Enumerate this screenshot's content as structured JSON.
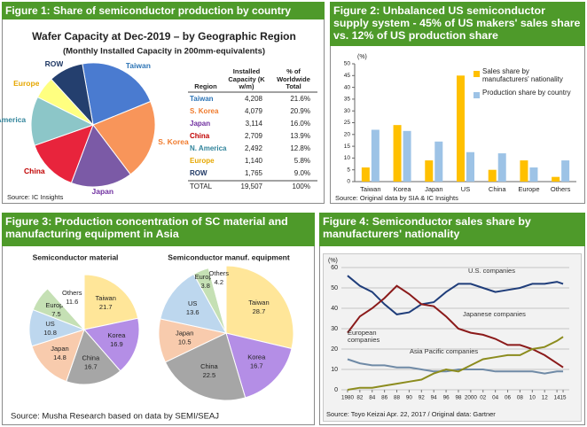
{
  "panels": [
    {
      "header": "Figure 1: Share of semiconductor production by country",
      "source": "Source: IC Insights"
    },
    {
      "header": "Figure 2: Unbalanced US semiconductor supply system - 45% of US makers' sales share vs. 12% of US production share",
      "source": "Source: Original data by SIA & IC Insights"
    },
    {
      "header": "Figure 3: Production concentration of SC material and manufacturing equipment in Asia",
      "source": "Source: Musha Research based on data by SEMI/SEAJ"
    },
    {
      "header": "Figure 4: Semiconductor sales share by manufacturers' nationality",
      "source": "Source: Toyo Keizai Apr. 22, 2017 / Original data: Gartner"
    }
  ],
  "chart_data": [
    {
      "type": "pie",
      "title": "Wafer Capacity at Dec-2019 – by Geographic Region",
      "subtitle": "(Monthly Installed Capacity in 200mm-equivalents)",
      "categories": [
        "Taiwan",
        "S. Korea",
        "Japan",
        "China",
        "N. America",
        "Europe",
        "ROW"
      ],
      "values": [
        21.6,
        20.9,
        16.0,
        13.9,
        12.8,
        5.8,
        9.0
      ],
      "value_labels": [
        "21.6%",
        "20.9%",
        "16.0%",
        "13.9%",
        "12.8%",
        "5.8%",
        "9.0%"
      ],
      "colors": [
        "#4a7bd0",
        "#f8955a",
        "#7b5aa6",
        "#e8243c",
        "#8cc6c8",
        "#ffff80",
        "#243f6e"
      ],
      "label_colors": [
        "#2e75b6",
        "#f07b2d",
        "#7030a0",
        "#c00000",
        "#31849b",
        "#e6a700",
        "#1f3864"
      ],
      "label_position": "outside",
      "table": {
        "columns": [
          "Region",
          "Installed Capacity (K w/m)",
          "% of Worldwide Total"
        ],
        "capacity": [
          "4,208",
          "4,079",
          "3,114",
          "2,709",
          "2,492",
          "1,140",
          "1,765"
        ],
        "total": [
          "TOTAL",
          "19,507",
          "100%"
        ]
      }
    },
    {
      "type": "bar",
      "unit": "(%)",
      "categories": [
        "Taiwan",
        "Korea",
        "Japan",
        "US",
        "China",
        "Europe",
        "Others"
      ],
      "series": [
        {
          "name": "Sales share by manufacturers' nationality",
          "color": "#ffc000",
          "values": [
            6,
            24,
            9,
            45,
            5,
            9,
            2
          ]
        },
        {
          "name": "Production share by country",
          "color": "#9dc3e6",
          "values": [
            22,
            21.5,
            17,
            12.5,
            12,
            6,
            9
          ]
        }
      ],
      "ylim": [
        0,
        50
      ],
      "yticks": [
        0,
        5,
        10,
        15,
        20,
        25,
        30,
        35,
        40,
        45,
        50
      ],
      "legend": "upper right"
    },
    {
      "type": "pie",
      "title": "Semiconductor material",
      "categories": [
        "Taiwan",
        "Korea",
        "China",
        "Japan",
        "US",
        "Europe",
        "Others"
      ],
      "values": [
        21.7,
        16.9,
        16.7,
        14.8,
        10.8,
        7.5,
        11.6
      ],
      "colors": [
        "#ffe699",
        "#b48ee6",
        "#a6a6a6",
        "#f8cbad",
        "#bdd7ee",
        "#c5e0b4",
        "#ffffff"
      ],
      "label_position": "inside"
    },
    {
      "type": "pie",
      "title": "Semiconductor manuf. equipment",
      "categories": [
        "Taiwan",
        "Korea",
        "China",
        "Japan",
        "US",
        "Europe",
        "Others"
      ],
      "values": [
        28.7,
        16.7,
        22.5,
        10.5,
        13.6,
        3.8,
        4.2
      ],
      "colors": [
        "#ffe699",
        "#b48ee6",
        "#a6a6a6",
        "#f8cbad",
        "#bdd7ee",
        "#c5e0b4",
        "#ffffff"
      ],
      "label_position": "inside"
    },
    {
      "type": "line",
      "unit": "(%)",
      "x": [
        1980,
        1982,
        1984,
        1986,
        1988,
        1990,
        1992,
        1994,
        1996,
        1998,
        2000,
        2002,
        2004,
        2006,
        2008,
        2010,
        2012,
        2014,
        2015
      ],
      "xlim": [
        1979,
        2016
      ],
      "xticks": [
        1980,
        {
          "value": 1982,
          "label": "82"
        },
        {
          "value": 1984,
          "label": "84"
        },
        {
          "value": 1986,
          "label": "86"
        },
        {
          "value": 1988,
          "label": "88"
        },
        {
          "value": 1990,
          "label": "90"
        },
        {
          "value": 1992,
          "label": "92"
        },
        {
          "value": 1994,
          "label": "94"
        },
        {
          "value": 1996,
          "label": "96"
        },
        {
          "value": 1998,
          "label": "98"
        },
        2000,
        {
          "value": 2002,
          "label": "02"
        },
        {
          "value": 2004,
          "label": "04"
        },
        {
          "value": 2006,
          "label": "06"
        },
        {
          "value": 2008,
          "label": "08"
        },
        {
          "value": 2010,
          "label": "10"
        },
        {
          "value": 2012,
          "label": "12"
        },
        {
          "value": 2014,
          "label": "14"
        },
        {
          "value": 2015,
          "label": "15"
        }
      ],
      "ylim": [
        0,
        60
      ],
      "yticks": [
        0,
        10,
        20,
        30,
        40,
        50,
        60
      ],
      "grid": true,
      "series": [
        {
          "name": "U.S. companies",
          "color": "#1f3d7a",
          "values": [
            56,
            51,
            48,
            42,
            37,
            38,
            42,
            43,
            48,
            52,
            52,
            50,
            48,
            49,
            50,
            52,
            52,
            53,
            52
          ]
        },
        {
          "name": "Japanese companies",
          "color": "#8b1a1a",
          "values": [
            28,
            36,
            40,
            45,
            51,
            47,
            42,
            41,
            36,
            30,
            28,
            27,
            25,
            22,
            22,
            20,
            17,
            13,
            11
          ]
        },
        {
          "name": "European companies",
          "color": "#6f8aa6",
          "values": [
            15,
            13,
            12,
            12,
            11,
            11,
            10,
            9,
            9,
            10,
            10,
            10,
            9,
            9,
            9,
            9,
            8,
            9,
            9
          ]
        },
        {
          "name": "Asia Pacific companies",
          "color": "#8c8c1e",
          "values": [
            0,
            1,
            1,
            2,
            3,
            4,
            5,
            8,
            10,
            9,
            12,
            15,
            16,
            17,
            17,
            20,
            21,
            24,
            26
          ]
        }
      ]
    }
  ]
}
